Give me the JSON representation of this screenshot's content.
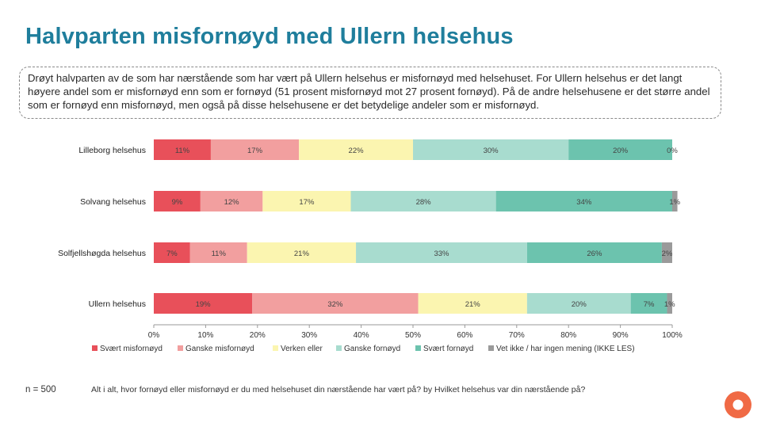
{
  "page": {
    "title": "Halvparten misfornøyd med Ullern helsehus",
    "summary": "Drøyt halvparten av de som har nærstående som har vært på Ullern helsehus er misfornøyd med helsehuset. For Ullern helsehus er det langt høyere andel som er misfornøyd enn som er fornøyd (51 prosent misfornøyd mot 27 prosent fornøyd). På de andre helsehusene er det større andel som er fornøyd enn misfornøyd, men også på disse helsehusene er det betydelige andeler som er misfornøyd.",
    "n_label": "n = 500",
    "question": "Alt i alt, hvor fornøyd eller misfornøyd er du med helsehuset din nærstående har vært på? by Hvilket helsehus var din nærstående på?",
    "logo_icon": "ring-logo-icon",
    "logo_color": "#f06a45"
  },
  "chart_data": {
    "type": "bar",
    "orientation": "horizontal",
    "stacked": true,
    "categories": [
      "Lilleborg helsehus",
      "Solvang helsehus",
      "Solfjellshøgda helsehus",
      "Ullern helsehus"
    ],
    "series": [
      {
        "name": "Svært misfornøyd",
        "color": "#e8505a",
        "values": [
          11,
          9,
          7,
          19
        ],
        "labels": [
          "11%",
          "9%",
          "7%",
          "19%"
        ]
      },
      {
        "name": "Ganske misfornøyd",
        "color": "#f29f9f",
        "values": [
          17,
          12,
          11,
          32
        ],
        "labels": [
          "17%",
          "12%",
          "11%",
          "32%"
        ]
      },
      {
        "name": "Verken eller",
        "color": "#fbf5b0",
        "values": [
          22,
          17,
          21,
          21
        ],
        "labels": [
          "22%",
          "17%",
          "21%",
          "21%"
        ]
      },
      {
        "name": "Ganske fornøyd",
        "color": "#a8dccf",
        "values": [
          30,
          28,
          33,
          20
        ],
        "labels": [
          "30%",
          "28%",
          "33%",
          "20%"
        ]
      },
      {
        "name": "Svært fornøyd",
        "color": "#6cc3ae",
        "values": [
          20,
          34,
          26,
          7
        ],
        "labels": [
          "20%",
          "34%",
          "26%",
          "7%"
        ]
      },
      {
        "name": "Vet ikke / har ingen mening (IKKE LES)",
        "color": "#9a9a9a",
        "values": [
          0,
          1,
          2,
          1
        ],
        "labels": [
          "0%",
          "1%",
          "2%",
          "1%"
        ]
      }
    ],
    "xlim": [
      0,
      100
    ],
    "xticks": [
      "0%",
      "10%",
      "20%",
      "30%",
      "40%",
      "50%",
      "60%",
      "70%",
      "80%",
      "90%",
      "100%"
    ],
    "grid": false,
    "legend": "bottom"
  }
}
